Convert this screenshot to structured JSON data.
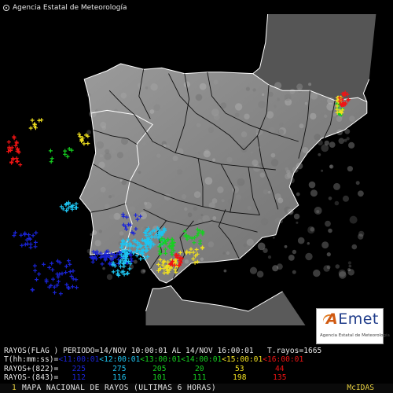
{
  "header": {
    "agency": "Agencia Estatal de Meteorología"
  },
  "logo": {
    "brand": "AEmet",
    "subtitle": "Agencia Estatal de Meteorología"
  },
  "colors": {
    "blue": "#1a24d8",
    "cyan": "#1ec4f0",
    "green": "#16d020",
    "yellow": "#f0e020",
    "red": "#f01414",
    "light_text": "#e6e6e6",
    "amber_text": "#e8d040",
    "grey_border": "#ffffff"
  },
  "legend": {
    "line1": {
      "prefix": "RAYOS(FLAG ) PERIODO=14/NOV 10:00:01 AL 14/NOV 16:00:01",
      "spacer": "   ",
      "total": "T.rayos=1665"
    },
    "line2": {
      "label": "T(hh:mm:ss)=",
      "intervals": [
        {
          "text": "<11:00:01",
          "color": "#1a24d8"
        },
        {
          "text": "<12:00:01",
          "color": "#1ec4f0"
        },
        {
          "text": "<13:00:01",
          "color": "#16d020"
        },
        {
          "text": "<14:00:01",
          "color": "#16d020"
        },
        {
          "text": "<15:00:01",
          "color": "#f0e020"
        },
        {
          "text": "<16:00:01",
          "color": "#f01414"
        }
      ]
    },
    "positive": {
      "label": "RAYOS+(822)=",
      "counts": [
        "225",
        "275",
        "205",
        "20",
        "53",
        "44"
      ]
    },
    "negative": {
      "label": "RAYOS-(843)=",
      "counts": [
        "112",
        "116",
        "101",
        "111",
        "198",
        "135"
      ]
    }
  },
  "footer": {
    "page_number": "1",
    "title": "MAPA NACIONAL DE RAYOS (ULTIMAS 6 HORAS)",
    "software": "McIDAS"
  },
  "map": {
    "icons": [
      "lightning-strike-plus-marker",
      "province-boundary-line",
      "coastline"
    ],
    "lightning_clusters": [
      {
        "color": "#1a24d8",
        "center": [
          -8.0,
          36.9
        ],
        "spread": [
          0.9,
          0.25
        ],
        "count": 60
      },
      {
        "color": "#1a24d8",
        "center": [
          -10.5,
          36.2
        ],
        "spread": [
          1.0,
          0.6
        ],
        "count": 40
      },
      {
        "color": "#1a24d8",
        "center": [
          -11.8,
          37.5
        ],
        "spread": [
          0.6,
          0.3
        ],
        "count": 18
      },
      {
        "color": "#1a24d8",
        "center": [
          -7.1,
          38.1
        ],
        "spread": [
          0.4,
          0.35
        ],
        "count": 14
      },
      {
        "color": "#1ec4f0",
        "center": [
          -7.0,
          37.2
        ],
        "spread": [
          0.6,
          0.35
        ],
        "count": 70
      },
      {
        "color": "#1ec4f0",
        "center": [
          -6.1,
          37.6
        ],
        "spread": [
          0.45,
          0.35
        ],
        "count": 55
      },
      {
        "color": "#1ec4f0",
        "center": [
          -9.8,
          38.7
        ],
        "spread": [
          0.4,
          0.15
        ],
        "count": 16
      },
      {
        "color": "#1ec4f0",
        "center": [
          -7.6,
          36.5
        ],
        "spread": [
          0.5,
          0.3
        ],
        "count": 25
      },
      {
        "color": "#16d020",
        "center": [
          -5.6,
          37.3
        ],
        "spread": [
          0.35,
          0.3
        ],
        "count": 30
      },
      {
        "color": "#16d020",
        "center": [
          -4.4,
          37.6
        ],
        "spread": [
          0.4,
          0.3
        ],
        "count": 18
      },
      {
        "color": "#16d020",
        "center": [
          -10.2,
          40.5
        ],
        "spread": [
          0.5,
          0.3
        ],
        "count": 8
      },
      {
        "color": "#16d020",
        "center": [
          2.0,
          42.2
        ],
        "spread": [
          0.15,
          0.3
        ],
        "count": 14
      },
      {
        "color": "#f0e020",
        "center": [
          -5.5,
          36.6
        ],
        "spread": [
          0.45,
          0.25
        ],
        "count": 35
      },
      {
        "color": "#f0e020",
        "center": [
          -4.5,
          37.0
        ],
        "spread": [
          0.5,
          0.3
        ],
        "count": 14
      },
      {
        "color": "#f0e020",
        "center": [
          2.0,
          42.3
        ],
        "spread": [
          0.15,
          0.3
        ],
        "count": 18
      },
      {
        "color": "#f0e020",
        "center": [
          -11.3,
          41.6
        ],
        "spread": [
          0.25,
          0.2
        ],
        "count": 8
      },
      {
        "color": "#f0e020",
        "center": [
          -9.2,
          41.1
        ],
        "spread": [
          0.3,
          0.2
        ],
        "count": 10
      },
      {
        "color": "#f01414",
        "center": [
          -5.2,
          36.8
        ],
        "spread": [
          0.3,
          0.2
        ],
        "count": 18
      },
      {
        "color": "#f01414",
        "center": [
          2.2,
          42.5
        ],
        "spread": [
          0.2,
          0.25
        ],
        "count": 20
      },
      {
        "color": "#f01414",
        "center": [
          -12.3,
          40.9
        ],
        "spread": [
          0.25,
          0.3
        ],
        "count": 16
      },
      {
        "color": "#f01414",
        "center": [
          -12.2,
          40.3
        ],
        "spread": [
          0.2,
          0.15
        ],
        "count": 8
      }
    ],
    "iberia_outline": [
      [
        -1.8,
        43.4
      ],
      [
        -3.2,
        43.45
      ],
      [
        -3.8,
        43.45
      ],
      [
        -4.8,
        43.4
      ],
      [
        -5.8,
        43.6
      ],
      [
        -6.6,
        43.55
      ],
      [
        -7.6,
        43.75
      ],
      [
        -8.2,
        43.5
      ],
      [
        -9.2,
        43.2
      ],
      [
        -9.0,
        42.6
      ],
      [
        -8.9,
        42.0
      ],
      [
        -8.8,
        41.4
      ],
      [
        -8.7,
        40.6
      ],
      [
        -9.0,
        39.7
      ],
      [
        -9.4,
        39.0
      ],
      [
        -8.9,
        38.5
      ],
      [
        -8.8,
        37.9
      ],
      [
        -8.95,
        37.0
      ],
      [
        -8.0,
        37.05
      ],
      [
        -7.4,
        37.2
      ],
      [
        -6.6,
        36.95
      ],
      [
        -6.3,
        36.5
      ],
      [
        -5.9,
        36.1
      ],
      [
        -5.6,
        36.0
      ],
      [
        -5.3,
        36.15
      ],
      [
        -4.5,
        36.7
      ],
      [
        -3.5,
        36.75
      ],
      [
        -2.4,
        36.85
      ],
      [
        -1.9,
        37.2
      ],
      [
        -1.4,
        37.6
      ],
      [
        -0.8,
        37.7
      ],
      [
        -0.6,
        38.2
      ],
      [
        0.2,
        38.75
      ],
      [
        -0.2,
        39.4
      ],
      [
        0.0,
        39.9
      ],
      [
        0.6,
        40.6
      ],
      [
        1.2,
        41.1
      ],
      [
        2.2,
        41.4
      ],
      [
        3.2,
        42.0
      ],
      [
        3.2,
        42.4
      ],
      [
        2.8,
        42.55
      ],
      [
        1.8,
        42.45
      ],
      [
        0.7,
        42.8
      ],
      [
        -0.5,
        42.8
      ],
      [
        -1.1,
        43.0
      ],
      [
        -1.8,
        43.4
      ]
    ],
    "france_coast": [
      [
        -1.8,
        43.4
      ],
      [
        -1.5,
        43.6
      ],
      [
        -1.25,
        44.5
      ],
      [
        -1.15,
        45.5
      ]
    ],
    "france_med": [
      [
        3.2,
        42.4
      ],
      [
        3.05,
        42.7
      ],
      [
        3.3,
        43.2
      ]
    ],
    "africa_coast": [
      [
        -6.2,
        35.8
      ],
      [
        -5.9,
        35.8
      ],
      [
        -5.4,
        35.9
      ],
      [
        -4.9,
        35.4
      ],
      [
        -3.2,
        35.2
      ],
      [
        -2.0,
        35.0
      ],
      [
        -0.5,
        35.7
      ]
    ],
    "africa_atlantic": [
      [
        -6.2,
        35.8
      ],
      [
        -6.5,
        35.0
      ]
    ],
    "portugal_border": [
      [
        -8.9,
        42.0
      ],
      [
        -8.2,
        42.1
      ],
      [
        -7.0,
        41.95
      ],
      [
        -6.2,
        41.6
      ],
      [
        -6.9,
        40.9
      ],
      [
        -6.8,
        40.2
      ],
      [
        -7.2,
        39.6
      ],
      [
        -7.4,
        38.8
      ],
      [
        -7.1,
        38.1
      ],
      [
        -7.4,
        37.2
      ]
    ],
    "internal_lines": [
      [
        [
          -5.5,
          43.4
        ],
        [
          -5.0,
          42.6
        ],
        [
          -4.3,
          42.0
        ],
        [
          -3.5,
          41.6
        ],
        [
          -2.8,
          41.2
        ],
        [
          -2.2,
          40.7
        ]
      ],
      [
        [
          -7.0,
          41.95
        ],
        [
          -6.2,
          41.0
        ],
        [
          -5.2,
          40.6
        ],
        [
          -4.2,
          40.4
        ],
        [
          -3.2,
          40.2
        ],
        [
          -2.0,
          40.1
        ],
        [
          -0.8,
          40.0
        ]
      ],
      [
        [
          -7.2,
          39.6
        ],
        [
          -6.0,
          39.2
        ],
        [
          -5.0,
          38.9
        ],
        [
          -4.0,
          38.7
        ],
        [
          -2.8,
          38.5
        ],
        [
          -1.5,
          38.4
        ]
      ],
      [
        [
          -6.6,
          38.6
        ],
        [
          -5.6,
          38.2
        ],
        [
          -4.6,
          38.0
        ],
        [
          -3.6,
          38.2
        ],
        [
          -2.6,
          38.0
        ],
        [
          -1.6,
          37.8
        ]
      ],
      [
        [
          -3.8,
          43.45
        ],
        [
          -3.6,
          42.6
        ],
        [
          -3.0,
          42.0
        ],
        [
          -2.0,
          41.6
        ],
        [
          -1.0,
          41.3
        ],
        [
          0.2,
          41.0
        ]
      ],
      [
        [
          -6.6,
          43.55
        ],
        [
          -6.8,
          42.6
        ],
        [
          -6.3,
          41.8
        ]
      ],
      [
        [
          -4.8,
          43.4
        ],
        [
          -4.6,
          42.5
        ],
        [
          -4.8,
          41.6
        ],
        [
          -5.2,
          40.6
        ]
      ],
      [
        [
          -1.1,
          43.0
        ],
        [
          -1.2,
          42.0
        ],
        [
          -1.6,
          41.2
        ],
        [
          -1.4,
          40.2
        ],
        [
          -1.0,
          39.4
        ],
        [
          -0.7,
          38.6
        ]
      ],
      [
        [
          0.7,
          42.8
        ],
        [
          0.6,
          41.8
        ],
        [
          0.4,
          41.0
        ],
        [
          0.2,
          40.4
        ]
      ],
      [
        [
          1.8,
          42.45
        ],
        [
          1.6,
          41.6
        ],
        [
          1.3,
          41.1
        ]
      ],
      [
        [
          -8.1,
          42.8
        ],
        [
          -7.5,
          42.3
        ],
        [
          -7.0,
          41.95
        ]
      ],
      [
        [
          -2.4,
          36.85
        ],
        [
          -2.8,
          37.5
        ],
        [
          -3.3,
          38.0
        ],
        [
          -3.0,
          38.6
        ]
      ],
      [
        [
          -5.3,
          36.15
        ],
        [
          -4.8,
          37.0
        ],
        [
          -5.0,
          37.6
        ],
        [
          -4.4,
          38.2
        ]
      ],
      [
        [
          -6.3,
          36.5
        ],
        [
          -5.8,
          37.1
        ],
        [
          -6.0,
          37.8
        ],
        [
          -5.6,
          38.2
        ]
      ],
      [
        [
          -8.8,
          40.2
        ],
        [
          -8.0,
          39.8
        ],
        [
          -7.2,
          39.6
        ]
      ],
      [
        [
          -8.9,
          38.5
        ],
        [
          -8.2,
          38.6
        ],
        [
          -7.4,
          38.8
        ]
      ],
      [
        [
          -8.8,
          41.4
        ],
        [
          -8.0,
          41.2
        ],
        [
          -7.3,
          41.1
        ],
        [
          -6.9,
          40.9
        ]
      ],
      [
        [
          -2.2,
          40.7
        ],
        [
          -1.6,
          41.2
        ]
      ],
      [
        [
          -4.2,
          40.4
        ],
        [
          -4.0,
          39.4
        ],
        [
          -4.0,
          38.7
        ]
      ],
      [
        [
          -3.2,
          40.2
        ],
        [
          -2.6,
          39.3
        ],
        [
          -2.8,
          38.5
        ]
      ],
      [
        [
          -2.0,
          40.1
        ],
        [
          -1.8,
          39.0
        ],
        [
          -1.5,
          38.4
        ]
      ]
    ]
  }
}
